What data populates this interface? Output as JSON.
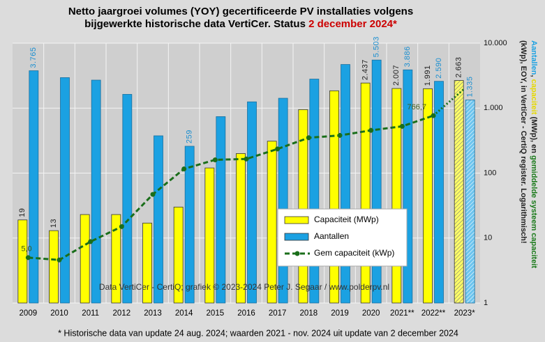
{
  "chart_data": {
    "type": "bar",
    "title_lines": [
      "Netto jaargroei volumes (YOY) gecertificeerde PV installaties volgens",
      "bijgewerkte historische data VertiCer. Status "
    ],
    "title_highlight": "2 december 2024*",
    "title_highlight_color": "#cc0000",
    "categories": [
      "2009",
      "2010",
      "2011",
      "2012",
      "2013",
      "2014",
      "2015",
      "2016",
      "2017",
      "2018",
      "2019",
      "2020",
      "2021**",
      "2022**",
      "2023*"
    ],
    "series": [
      {
        "name": "Capaciteit (MWp)",
        "color": "#ffff00",
        "kind": "bar",
        "values": [
          19,
          13,
          23,
          23,
          17,
          30,
          120,
          200,
          310,
          950,
          1850,
          2437,
          2007,
          1991,
          2663
        ],
        "value_labels": [
          "19",
          "13",
          null,
          null,
          null,
          null,
          null,
          null,
          null,
          null,
          null,
          "2.437",
          "2.007",
          "1.991",
          "2.663"
        ]
      },
      {
        "name": "Aantallen",
        "color": "#1ba1e2",
        "kind": "bar",
        "values": [
          3765,
          2950,
          2700,
          1630,
          375,
          259,
          740,
          1250,
          1420,
          2800,
          4700,
          5503,
          3886,
          2590,
          1335
        ],
        "value_labels": [
          "3.765",
          null,
          null,
          null,
          null,
          "259",
          null,
          null,
          null,
          null,
          null,
          "5.503",
          "3.886",
          "2.590",
          "1.335"
        ]
      },
      {
        "name": "Gem capaciteit (kWp)",
        "color": "#1a6e1a",
        "kind": "line",
        "values": [
          5.0,
          4.6,
          8.8,
          15,
          47,
          116,
          160,
          165,
          235,
          350,
          380,
          455,
          525,
          766.7,
          2000
        ],
        "value_labels": [
          "5,0",
          null,
          null,
          null,
          null,
          null,
          null,
          null,
          null,
          null,
          null,
          null,
          null,
          "766,7",
          null
        ]
      }
    ],
    "hatched_last": true,
    "log_scale": true,
    "ylim": [
      1,
      10000
    ],
    "yticks": [
      1,
      10,
      100,
      {
        "value": 1000,
        "label": "1.000"
      },
      {
        "value": 10000,
        "label": "10.000"
      }
    ],
    "grid": true,
    "legend": "center",
    "ylabel_lines": [
      [
        {
          "text": "Aantallen",
          "color": "#1ba1e2"
        },
        {
          "text": ", ",
          "color": "#222222"
        },
        {
          "text": "capaciteit",
          "color": "#e6d800"
        },
        {
          "text": " (MWp), en ",
          "color": "#222222"
        },
        {
          "text": "gemiddelde systeem capaciteit",
          "color": "#1a7a1a"
        }
      ],
      [
        {
          "text": "(kWp), EOY, in VertiCer - CertiQ register. Logarithmisch!",
          "color": "#222222"
        }
      ]
    ],
    "watermark": "Data VertiCer - CertiQ;  grafiek © 2023-2024  Peter J. Segaar / www.polderpv.nl",
    "footnote": "* Historische data van update 24 aug. 2024; waarden 2021 - nov. 2024 uit update van 2 december 2024"
  }
}
